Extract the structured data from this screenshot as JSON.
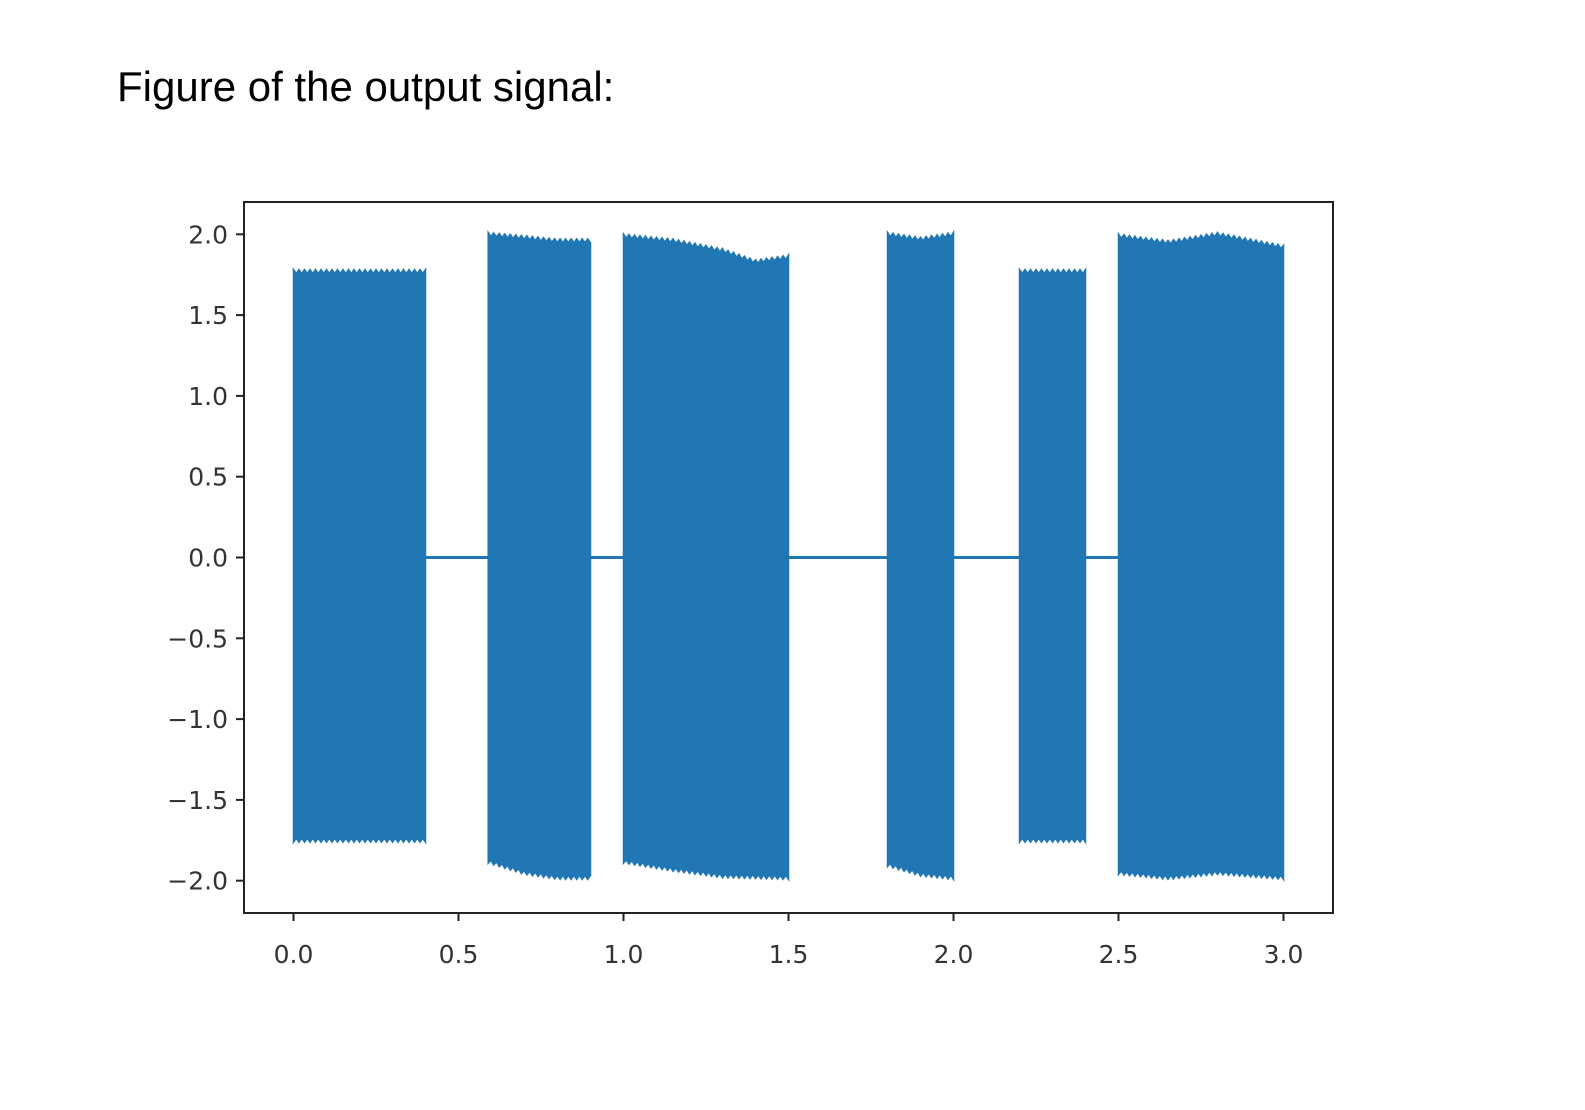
{
  "page": {
    "heading": "Figure of the output signal:"
  },
  "chart_data": {
    "type": "line",
    "title": "",
    "xlabel": "",
    "ylabel": "",
    "xlim": [
      -0.15,
      3.15
    ],
    "ylim": [
      -2.2,
      2.2
    ],
    "x_ticks": [
      0.0,
      0.5,
      1.0,
      1.5,
      2.0,
      2.5,
      3.0
    ],
    "x_tick_labels": [
      "0.0",
      "0.5",
      "1.0",
      "1.5",
      "2.0",
      "2.5",
      "3.0"
    ],
    "y_ticks": [
      2.0,
      1.5,
      1.0,
      0.5,
      0.0,
      -0.5,
      -1.0,
      -1.5,
      -2.0
    ],
    "y_tick_labels": [
      "2.0",
      "1.5",
      "1.0",
      "0.5",
      "0.0",
      "−0.5",
      "−1.0",
      "−1.5",
      "−2.0"
    ],
    "grid": false,
    "series_color": "#2177b4",
    "baseline": {
      "x": [
        0.0,
        3.0
      ],
      "y": 0.0
    },
    "bursts": [
      {
        "x_start": 0.0,
        "x_end": 0.4,
        "upper": [
          [
            0.0,
            1.77
          ],
          [
            0.4,
            1.77
          ]
        ],
        "lower": [
          [
            0.0,
            -1.75
          ],
          [
            0.4,
            -1.75
          ]
        ]
      },
      {
        "x_start": 0.59,
        "x_end": 0.9,
        "upper": [
          [
            0.59,
            2.0
          ],
          [
            0.7,
            1.98
          ],
          [
            0.8,
            1.96
          ],
          [
            0.9,
            1.96
          ]
        ],
        "lower": [
          [
            0.59,
            -1.88
          ],
          [
            0.7,
            -1.95
          ],
          [
            0.8,
            -1.98
          ],
          [
            0.9,
            -1.98
          ]
        ]
      },
      {
        "x_start": 1.0,
        "x_end": 1.5,
        "upper": [
          [
            1.0,
            1.99
          ],
          [
            1.15,
            1.96
          ],
          [
            1.3,
            1.9
          ],
          [
            1.4,
            1.83
          ],
          [
            1.5,
            1.86
          ]
        ],
        "lower": [
          [
            1.0,
            -1.88
          ],
          [
            1.15,
            -1.93
          ],
          [
            1.3,
            -1.97
          ],
          [
            1.5,
            -1.98
          ]
        ]
      },
      {
        "x_start": 1.8,
        "x_end": 2.0,
        "upper": [
          [
            1.8,
            2.0
          ],
          [
            1.9,
            1.97
          ],
          [
            2.0,
            2.0
          ]
        ],
        "lower": [
          [
            1.8,
            -1.9
          ],
          [
            1.9,
            -1.96
          ],
          [
            2.0,
            -1.98
          ]
        ]
      },
      {
        "x_start": 2.2,
        "x_end": 2.4,
        "upper": [
          [
            2.2,
            1.77
          ],
          [
            2.4,
            1.77
          ]
        ],
        "lower": [
          [
            2.2,
            -1.75
          ],
          [
            2.4,
            -1.75
          ]
        ]
      },
      {
        "x_start": 2.5,
        "x_end": 3.0,
        "upper": [
          [
            2.5,
            1.99
          ],
          [
            2.65,
            1.95
          ],
          [
            2.8,
            2.0
          ],
          [
            3.0,
            1.92
          ]
        ],
        "lower": [
          [
            2.5,
            -1.95
          ],
          [
            2.65,
            -1.98
          ],
          [
            2.8,
            -1.95
          ],
          [
            3.0,
            -1.98
          ]
        ]
      }
    ]
  }
}
